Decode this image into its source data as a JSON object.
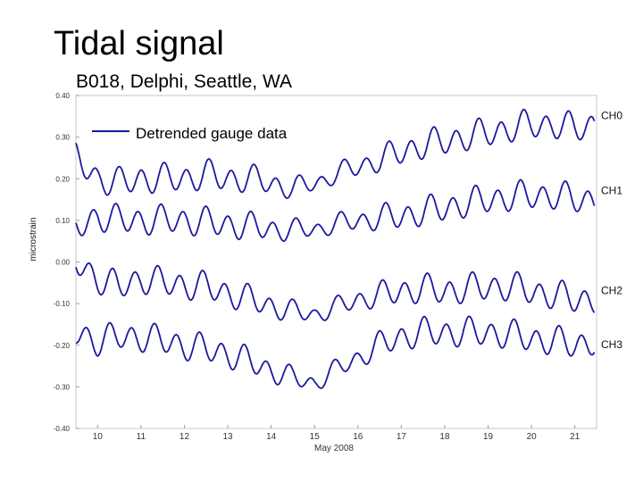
{
  "slide": {
    "title": "Tidal signal",
    "subtitle": "B018, Delphi, Seattle, WA"
  },
  "chart_data": {
    "type": "line",
    "xlabel": "May 2008",
    "ylabel": "microstrain",
    "xlim": [
      9.5,
      21.5
    ],
    "ylim": [
      -0.4,
      0.4
    ],
    "x_ticks": [
      10,
      11,
      12,
      13,
      14,
      15,
      16,
      17,
      18,
      19,
      20,
      21
    ],
    "y_ticks": [
      "0.40",
      "0.30",
      "0.20",
      "0.10",
      "0.00",
      "-0.10",
      "-0.20",
      "-0.30",
      "-0.40"
    ],
    "y_tick_values": [
      0.4,
      0.3,
      0.2,
      0.1,
      0.0,
      -0.1,
      -0.2,
      -0.3,
      -0.4
    ],
    "grid": false,
    "legend": {
      "label": "Detrended gauge data",
      "position": "top-left"
    },
    "line_color": "#1a1a9e",
    "series": [
      {
        "name": "CH0",
        "points": [
          [
            9.5,
            0.25
          ],
          [
            10,
            0.2
          ],
          [
            10.5,
            0.19
          ],
          [
            11,
            0.2
          ],
          [
            11.5,
            0.2
          ],
          [
            12,
            0.2
          ],
          [
            12.5,
            0.21
          ],
          [
            13,
            0.2
          ],
          [
            13.5,
            0.2
          ],
          [
            14,
            0.19
          ],
          [
            14.5,
            0.175
          ],
          [
            15,
            0.19
          ],
          [
            15.5,
            0.21
          ],
          [
            16,
            0.23
          ],
          [
            16.5,
            0.245
          ],
          [
            17,
            0.265
          ],
          [
            17.5,
            0.28
          ],
          [
            18,
            0.29
          ],
          [
            18.5,
            0.3
          ],
          [
            19,
            0.31
          ],
          [
            19.5,
            0.32
          ],
          [
            20,
            0.33
          ],
          [
            20.5,
            0.33
          ],
          [
            21,
            0.32
          ],
          [
            21.4,
            0.33
          ]
        ]
      },
      {
        "name": "CH1",
        "points": [
          [
            9.5,
            0.08
          ],
          [
            10,
            0.11
          ],
          [
            10.5,
            0.1
          ],
          [
            11,
            0.1
          ],
          [
            11.5,
            0.1
          ],
          [
            12,
            0.1
          ],
          [
            12.5,
            0.095
          ],
          [
            13,
            0.09
          ],
          [
            13.5,
            0.085
          ],
          [
            14,
            0.08
          ],
          [
            14.5,
            0.075
          ],
          [
            15,
            0.08
          ],
          [
            15.5,
            0.09
          ],
          [
            16,
            0.1
          ],
          [
            16.5,
            0.105
          ],
          [
            17,
            0.11
          ],
          [
            17.5,
            0.12
          ],
          [
            18,
            0.13
          ],
          [
            18.5,
            0.14
          ],
          [
            19,
            0.15
          ],
          [
            19.5,
            0.155
          ],
          [
            20,
            0.16
          ],
          [
            20.5,
            0.16
          ],
          [
            21,
            0.15
          ],
          [
            21.4,
            0.15
          ]
        ]
      },
      {
        "name": "CH2",
        "points": [
          [
            9.5,
            0.0
          ],
          [
            10,
            -0.04
          ],
          [
            10.5,
            -0.06
          ],
          [
            11,
            -0.04
          ],
          [
            11.5,
            -0.05
          ],
          [
            12,
            -0.055
          ],
          [
            12.5,
            -0.06
          ],
          [
            13,
            -0.075
          ],
          [
            13.5,
            -0.09
          ],
          [
            14,
            -0.105
          ],
          [
            14.5,
            -0.12
          ],
          [
            15,
            -0.125
          ],
          [
            15.5,
            -0.11
          ],
          [
            16,
            -0.09
          ],
          [
            16.5,
            -0.08
          ],
          [
            17,
            -0.07
          ],
          [
            17.5,
            -0.065
          ],
          [
            18,
            -0.07
          ],
          [
            18.5,
            -0.065
          ],
          [
            19,
            -0.06
          ],
          [
            19.5,
            -0.06
          ],
          [
            20,
            -0.07
          ],
          [
            20.5,
            -0.08
          ],
          [
            21,
            -0.09
          ],
          [
            21.4,
            -0.09
          ]
        ]
      },
      {
        "name": "CH3",
        "points": [
          [
            9.5,
            -0.17
          ],
          [
            10,
            -0.19
          ],
          [
            10.5,
            -0.18
          ],
          [
            11,
            -0.18
          ],
          [
            11.5,
            -0.19
          ],
          [
            12,
            -0.2
          ],
          [
            12.5,
            -0.21
          ],
          [
            13,
            -0.22
          ],
          [
            13.5,
            -0.24
          ],
          [
            14,
            -0.26
          ],
          [
            14.5,
            -0.28
          ],
          [
            15,
            -0.29
          ],
          [
            15.5,
            -0.26
          ],
          [
            16,
            -0.23
          ],
          [
            16.5,
            -0.2
          ],
          [
            17,
            -0.18
          ],
          [
            17.5,
            -0.17
          ],
          [
            18,
            -0.17
          ],
          [
            18.5,
            -0.17
          ],
          [
            19,
            -0.17
          ],
          [
            19.5,
            -0.175
          ],
          [
            20,
            -0.185
          ],
          [
            20.5,
            -0.19
          ],
          [
            21,
            -0.2
          ],
          [
            21.4,
            -0.19
          ]
        ]
      }
    ]
  }
}
